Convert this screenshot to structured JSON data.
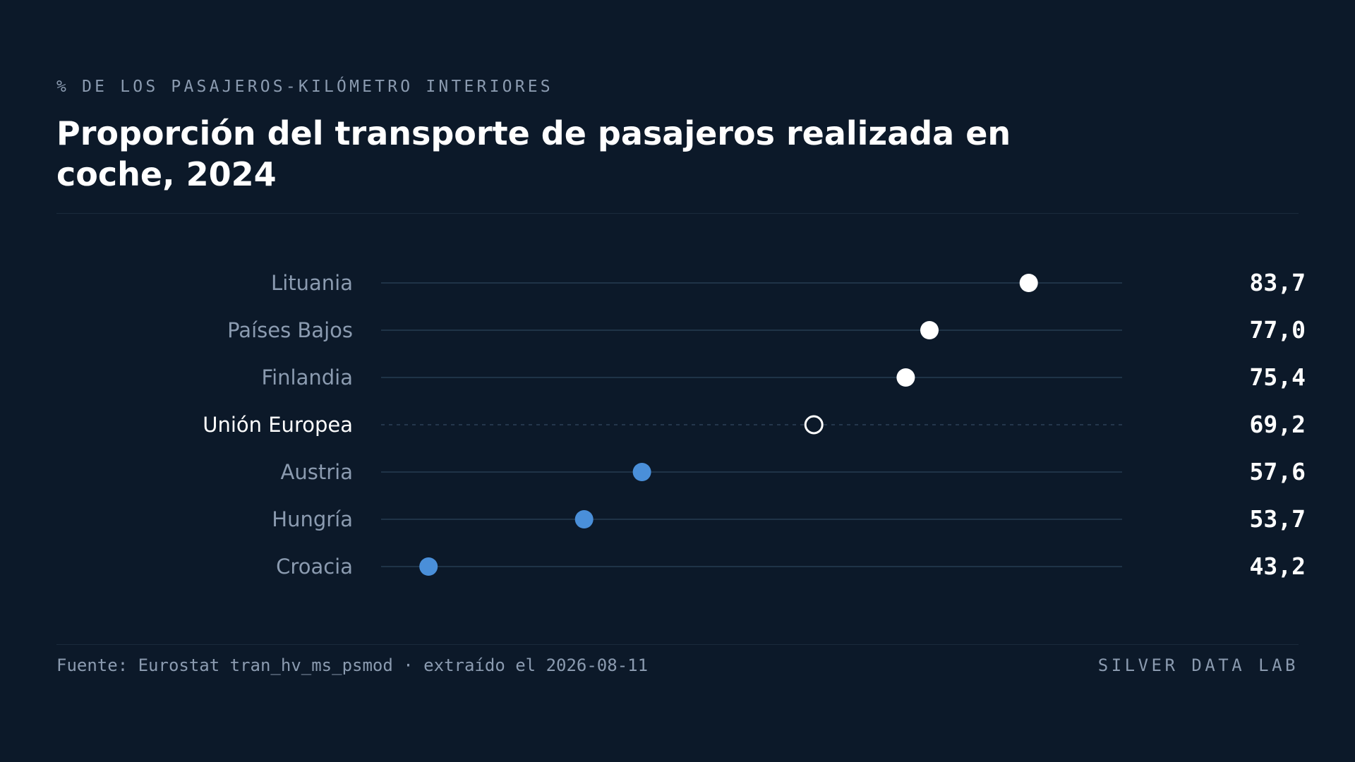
{
  "header": {
    "kicker": "% DE LOS PASAJEROS-KILÓMETRO INTERIORES",
    "title": "Proporción del transporte de pasajeros realizada en coche, 2024"
  },
  "footer": {
    "source": "Fuente: Eurostat tran_hv_ms_psmod · extraído el 2026-08-11",
    "brand": "SILVER DATA LAB"
  },
  "colors": {
    "background": "#0c1929",
    "above_average": "#ffffff",
    "below_average": "#4a8fd9",
    "reference_marker": "#ffffff",
    "label": "#8b9bb0",
    "reference_label": "#ffffff",
    "track": "#1f3347"
  },
  "chart_data": {
    "type": "dot",
    "title": "Proporción del transporte de pasajeros realizada en coche, 2024",
    "subtitle": "% DE LOS PASAJEROS-KILÓMETRO INTERIORES",
    "xlim": [
      40,
      90
    ],
    "grid": false,
    "categories": [
      "Lituania",
      "Países Bajos",
      "Finlandia",
      "Unión Europea",
      "Austria",
      "Hungría",
      "Croacia"
    ],
    "values": [
      83.7,
      77.0,
      75.4,
      69.2,
      57.6,
      53.7,
      43.2
    ],
    "value_labels": [
      "83,7",
      "77,0",
      "75,4",
      "69,2",
      "57,6",
      "53,7",
      "43,2"
    ],
    "reference_category": "Unión Europea",
    "reference_value": 69.2
  }
}
